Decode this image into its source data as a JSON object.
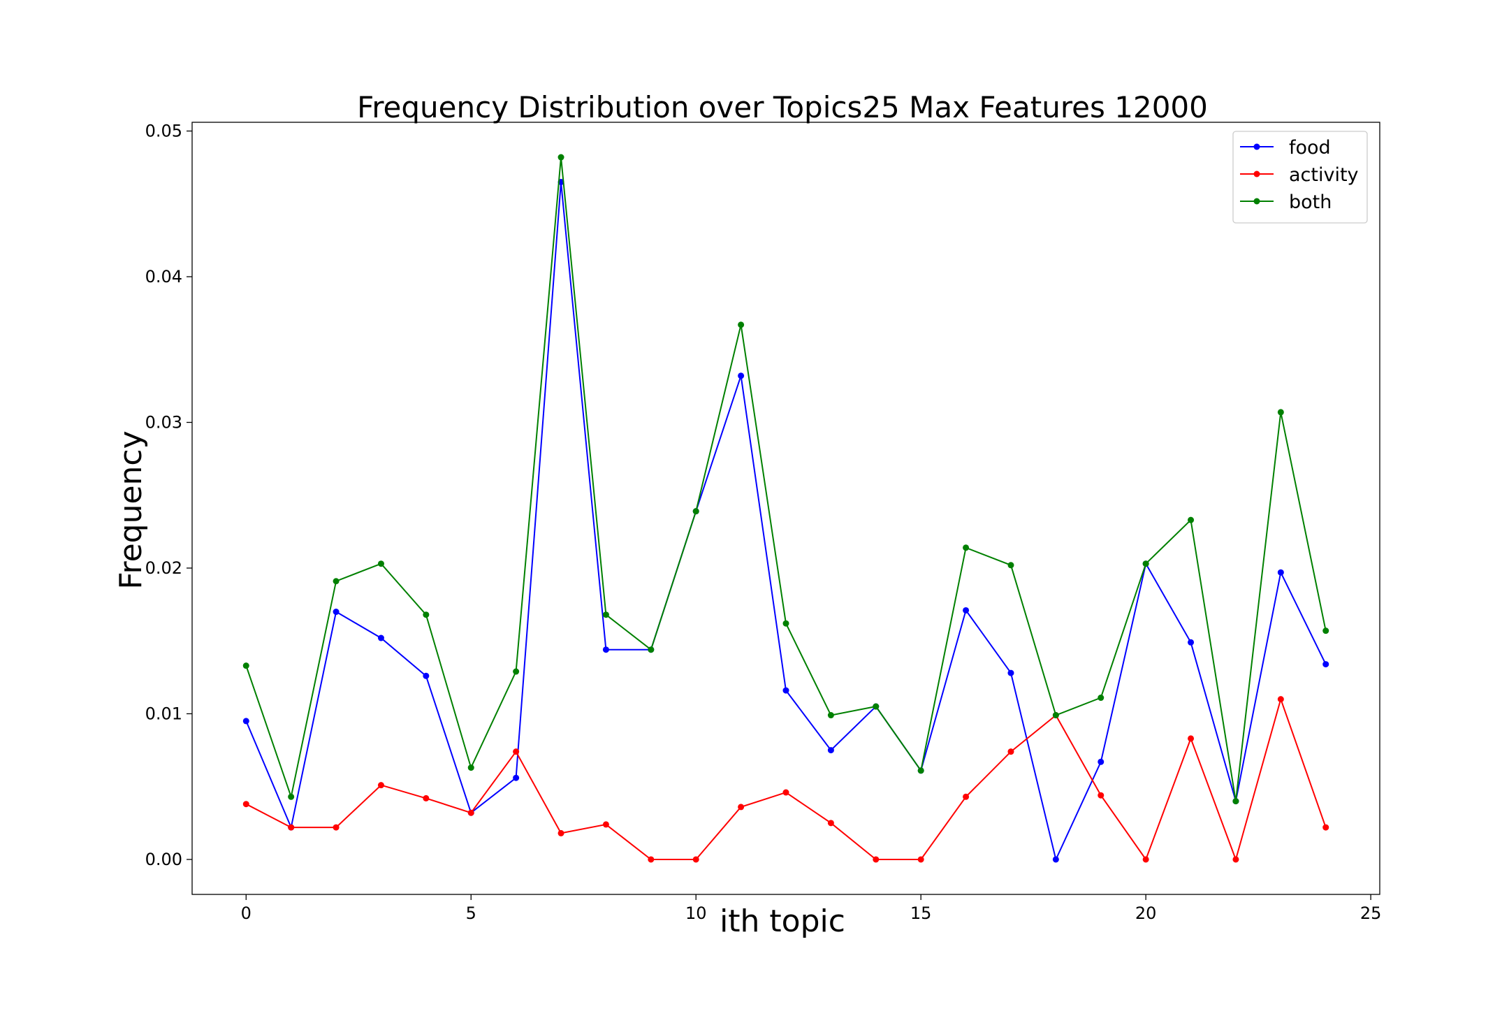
{
  "chart_data": {
    "type": "line",
    "title": "Frequency Distribution over Topics25 Max Features 12000",
    "xlabel": "ith topic",
    "ylabel": "Frequency",
    "xlim": [
      -1.2,
      25.2
    ],
    "ylim": [
      -0.0024,
      0.0506
    ],
    "xticks": [
      0,
      5,
      10,
      15,
      20,
      25
    ],
    "xtick_labels": [
      "0",
      "5",
      "10",
      "15",
      "20",
      "25"
    ],
    "yticks": [
      0.0,
      0.01,
      0.02,
      0.03,
      0.04,
      0.05
    ],
    "ytick_labels": [
      "0.00",
      "0.01",
      "0.02",
      "0.03",
      "0.04",
      "0.05"
    ],
    "grid": false,
    "legend_position": "top-right",
    "x": [
      0,
      1,
      2,
      3,
      4,
      5,
      6,
      7,
      8,
      9,
      10,
      11,
      12,
      13,
      14,
      15,
      16,
      17,
      18,
      19,
      20,
      21,
      22,
      23,
      24
    ],
    "series": [
      {
        "name": "food",
        "color": "#0000ff",
        "values": [
          0.0095,
          0.0022,
          0.017,
          0.0152,
          0.0126,
          0.0032,
          0.0056,
          0.0465,
          0.0144,
          0.0144,
          0.0239,
          0.0332,
          0.0116,
          0.0075,
          0.0105,
          0.0061,
          0.0171,
          0.0128,
          0.0,
          0.0067,
          0.0203,
          0.0149,
          0.004,
          0.0197,
          0.0134
        ]
      },
      {
        "name": "activity",
        "color": "#ff0000",
        "values": [
          0.0038,
          0.0022,
          0.0022,
          0.0051,
          0.0042,
          0.0032,
          0.0074,
          0.0018,
          0.0024,
          0.0,
          0.0,
          0.0036,
          0.0046,
          0.0025,
          0.0,
          0.0,
          0.0043,
          0.0074,
          0.0099,
          0.0044,
          0.0,
          0.0083,
          0.0,
          0.011,
          0.0022
        ]
      },
      {
        "name": "both",
        "color": "#008000",
        "values": [
          0.0133,
          0.0043,
          0.0191,
          0.0203,
          0.0168,
          0.0063,
          0.0129,
          0.0482,
          0.0168,
          0.0144,
          0.0239,
          0.0367,
          0.0162,
          0.0099,
          0.0105,
          0.0061,
          0.0214,
          0.0202,
          0.0099,
          0.0111,
          0.0203,
          0.0233,
          0.004,
          0.0307,
          0.0157
        ]
      }
    ]
  }
}
